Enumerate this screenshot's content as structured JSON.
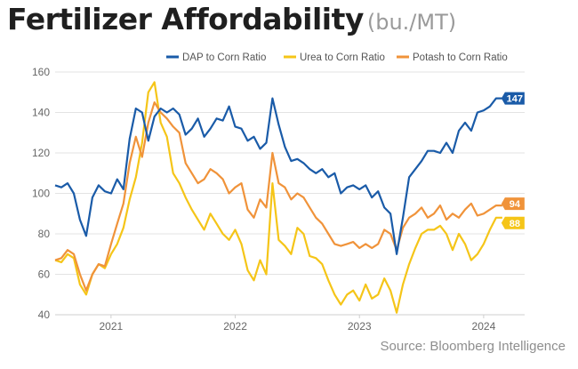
{
  "title": "Fertilizer Affordability",
  "subtitle": "(bu./MT)",
  "source": "Source: Bloomberg Intelligence",
  "chart_data": {
    "type": "line",
    "xlim": [
      2020.55,
      2024.33
    ],
    "ylim": [
      40,
      160
    ],
    "yticks": [
      40,
      60,
      80,
      100,
      120,
      140,
      160
    ],
    "xticks": [
      {
        "value": 2021.0,
        "label": "2021"
      },
      {
        "value": 2022.0,
        "label": "2022"
      },
      {
        "value": 2023.0,
        "label": "2023"
      },
      {
        "value": 2024.0,
        "label": "2024"
      }
    ],
    "grid": "horizontal",
    "legend_position": "top-right",
    "series": [
      {
        "name": "DAP to Corn Ratio",
        "color": "#1a5ba8",
        "end_label": "147",
        "x": [
          2020.55,
          2020.6,
          2020.65,
          2020.7,
          2020.75,
          2020.8,
          2020.85,
          2020.9,
          2020.95,
          2021.0,
          2021.05,
          2021.1,
          2021.15,
          2021.2,
          2021.25,
          2021.3,
          2021.35,
          2021.4,
          2021.45,
          2021.5,
          2021.55,
          2021.6,
          2021.65,
          2021.7,
          2021.75,
          2021.8,
          2021.85,
          2021.9,
          2021.95,
          2022.0,
          2022.05,
          2022.1,
          2022.15,
          2022.2,
          2022.25,
          2022.3,
          2022.35,
          2022.4,
          2022.45,
          2022.5,
          2022.55,
          2022.6,
          2022.65,
          2022.7,
          2022.75,
          2022.8,
          2022.85,
          2022.9,
          2022.95,
          2023.0,
          2023.05,
          2023.1,
          2023.15,
          2023.2,
          2023.25,
          2023.3,
          2023.35,
          2023.4,
          2023.45,
          2023.5,
          2023.55,
          2023.6,
          2023.65,
          2023.7,
          2023.75,
          2023.8,
          2023.85,
          2023.9,
          2023.95,
          2024.0,
          2024.05,
          2024.1,
          2024.15
        ],
        "y": [
          104,
          103,
          105,
          100,
          87,
          79,
          98,
          104,
          101,
          100,
          107,
          102,
          127,
          142,
          140,
          126,
          138,
          142,
          140,
          142,
          139,
          129,
          132,
          137,
          128,
          132,
          137,
          136,
          143,
          133,
          132,
          126,
          128,
          122,
          125,
          147,
          134,
          123,
          116,
          117,
          115,
          112,
          110,
          112,
          108,
          110,
          100,
          103,
          104,
          102,
          104,
          98,
          101,
          93,
          90,
          70,
          88,
          108,
          112,
          116,
          121,
          121,
          120,
          125,
          120,
          131,
          135,
          131,
          140,
          141,
          143,
          147,
          147
        ]
      },
      {
        "name": "Urea to Corn Ratio",
        "color": "#f5c518",
        "end_label": "88",
        "x": [
          2020.55,
          2020.6,
          2020.65,
          2020.7,
          2020.75,
          2020.8,
          2020.85,
          2020.9,
          2020.95,
          2021.0,
          2021.05,
          2021.1,
          2021.15,
          2021.2,
          2021.25,
          2021.3,
          2021.35,
          2021.4,
          2021.45,
          2021.5,
          2021.55,
          2021.6,
          2021.65,
          2021.7,
          2021.75,
          2021.8,
          2021.85,
          2021.9,
          2021.95,
          2022.0,
          2022.05,
          2022.1,
          2022.15,
          2022.2,
          2022.25,
          2022.3,
          2022.35,
          2022.4,
          2022.45,
          2022.5,
          2022.55,
          2022.6,
          2022.65,
          2022.7,
          2022.75,
          2022.8,
          2022.85,
          2022.9,
          2022.95,
          2023.0,
          2023.05,
          2023.1,
          2023.15,
          2023.2,
          2023.25,
          2023.3,
          2023.35,
          2023.4,
          2023.45,
          2023.5,
          2023.55,
          2023.6,
          2023.65,
          2023.7,
          2023.75,
          2023.8,
          2023.85,
          2023.9,
          2023.95,
          2024.0,
          2024.05,
          2024.1,
          2024.15
        ],
        "y": [
          67,
          66,
          70,
          68,
          55,
          50,
          60,
          65,
          63,
          70,
          75,
          83,
          97,
          108,
          125,
          150,
          155,
          135,
          128,
          110,
          105,
          98,
          92,
          87,
          82,
          90,
          85,
          80,
          77,
          82,
          75,
          62,
          57,
          67,
          60,
          105,
          77,
          74,
          70,
          83,
          80,
          69,
          68,
          65,
          57,
          50,
          45,
          50,
          52,
          47,
          55,
          48,
          50,
          58,
          52,
          41,
          55,
          65,
          73,
          80,
          82,
          82,
          84,
          80,
          72,
          80,
          75,
          67,
          70,
          75,
          82,
          88,
          88
        ]
      },
      {
        "name": "Potash to Corn Ratio",
        "color": "#f0933a",
        "end_label": "94",
        "x": [
          2020.55,
          2020.6,
          2020.65,
          2020.7,
          2020.75,
          2020.8,
          2020.85,
          2020.9,
          2020.95,
          2021.0,
          2021.05,
          2021.1,
          2021.15,
          2021.2,
          2021.25,
          2021.3,
          2021.35,
          2021.4,
          2021.45,
          2021.5,
          2021.55,
          2021.6,
          2021.65,
          2021.7,
          2021.75,
          2021.8,
          2021.85,
          2021.9,
          2021.95,
          2022.0,
          2022.05,
          2022.1,
          2022.15,
          2022.2,
          2022.25,
          2022.3,
          2022.35,
          2022.4,
          2022.45,
          2022.5,
          2022.55,
          2022.6,
          2022.65,
          2022.7,
          2022.75,
          2022.8,
          2022.85,
          2022.9,
          2022.95,
          2023.0,
          2023.05,
          2023.1,
          2023.15,
          2023.2,
          2023.25,
          2023.3,
          2023.35,
          2023.4,
          2023.45,
          2023.5,
          2023.55,
          2023.6,
          2023.65,
          2023.7,
          2023.75,
          2023.8,
          2023.85,
          2023.9,
          2023.95,
          2024.0,
          2024.05,
          2024.1,
          2024.15
        ],
        "y": [
          67,
          68,
          72,
          70,
          60,
          52,
          60,
          65,
          64,
          75,
          85,
          95,
          115,
          128,
          118,
          135,
          145,
          140,
          137,
          133,
          130,
          115,
          110,
          105,
          107,
          112,
          110,
          107,
          100,
          103,
          105,
          92,
          88,
          97,
          93,
          120,
          105,
          103,
          97,
          100,
          98,
          93,
          88,
          85,
          80,
          75,
          74,
          75,
          76,
          73,
          75,
          73,
          75,
          82,
          80,
          72,
          83,
          88,
          90,
          93,
          88,
          90,
          94,
          87,
          90,
          88,
          92,
          95,
          89,
          90,
          92,
          94,
          94
        ]
      }
    ]
  }
}
